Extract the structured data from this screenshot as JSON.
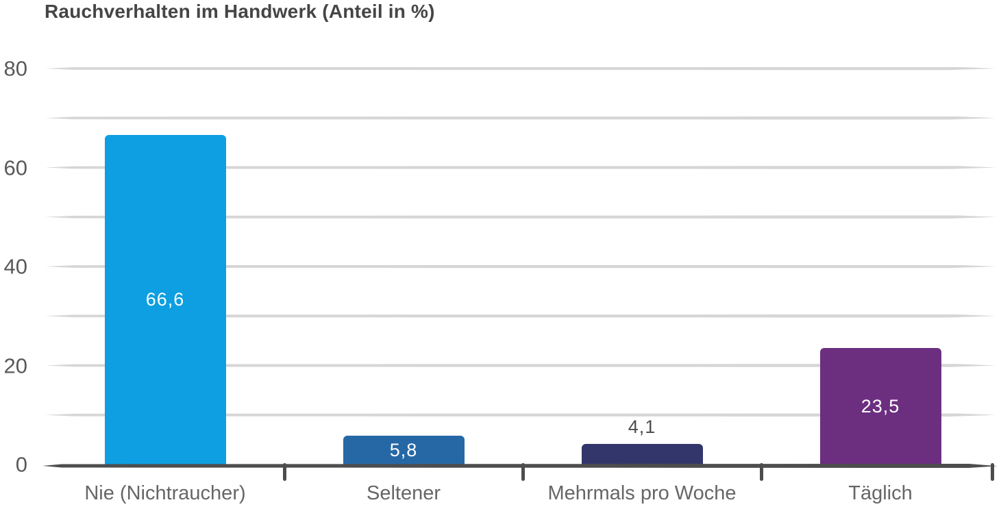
{
  "chart_data": {
    "type": "bar",
    "title": "Rauchverhalten im Handwerk (Anteil in %)",
    "categories": [
      "Nie (Nichtraucher)",
      "Seltener",
      "Mehrmals pro Woche",
      "Täglich"
    ],
    "values": [
      66.6,
      5.8,
      4.1,
      23.5
    ],
    "value_labels": [
      "66,6",
      "5,8",
      "4,1",
      "23,5"
    ],
    "bar_colors": [
      "#0d9fe1",
      "#2668a6",
      "#33366a",
      "#6c2f80"
    ],
    "xlabel": "",
    "ylabel": "",
    "ylim": [
      0,
      80
    ],
    "ytick_values": [
      0,
      20,
      40,
      60,
      80
    ],
    "ytick_labels": [
      "0",
      "20",
      "40",
      "60",
      "80"
    ],
    "grid_step": 10,
    "grid": "on",
    "legend": "none",
    "value_label_placement_rule": "inside bar when bar is tall enough, above bar otherwise"
  },
  "style": {
    "background": "#ffffff",
    "title_color": "#454545",
    "axis_color": "#4d4d4d",
    "grid_color": "#d6d6d6",
    "ytick_label_color": "#595959",
    "category_label_color": "#666666",
    "value_label_inside_color": "#ffffff",
    "value_label_outside_color": "#4d4d4d"
  }
}
